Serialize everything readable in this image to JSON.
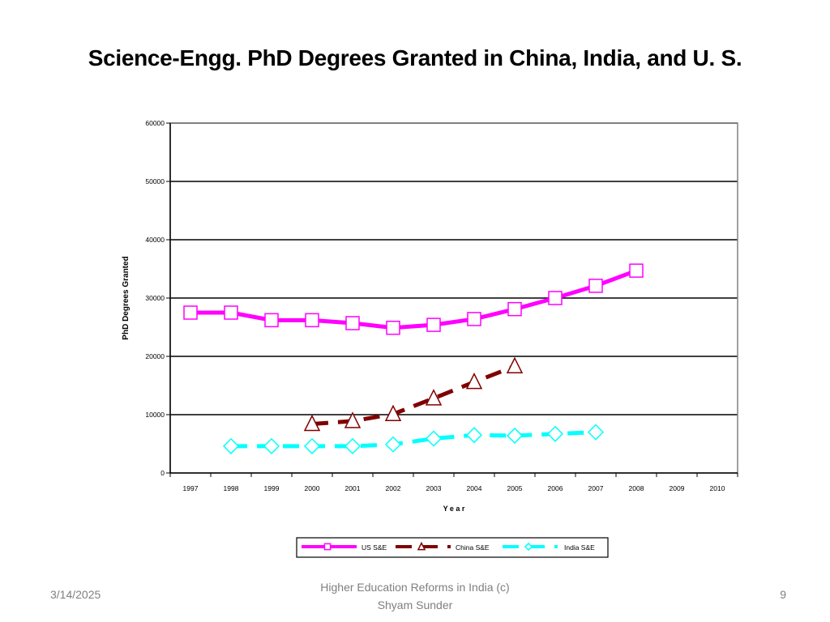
{
  "slide": {
    "title": "Science-Engg. PhD Degrees Granted in China, India, and U. S."
  },
  "footer": {
    "date": "3/14/2025",
    "center_line1": "Higher Education Reforms in India (c)",
    "center_line2": "Shyam Sunder",
    "page_number": "9"
  },
  "chart_data": {
    "type": "line",
    "title": "",
    "xlabel": "Y e a r",
    "ylabel": "PhD Degrees Granted",
    "categories": [
      "1997",
      "1998",
      "1999",
      "2000",
      "2001",
      "2002",
      "2003",
      "2004",
      "2005",
      "2006",
      "2007",
      "2008",
      "2009",
      "2010"
    ],
    "ylim": [
      0,
      60000
    ],
    "yticks": [
      0,
      10000,
      20000,
      30000,
      40000,
      50000,
      60000
    ],
    "grid": true,
    "legend_position": "bottom",
    "series": [
      {
        "name": "US S&E",
        "color": "#ff00ff",
        "marker": "square",
        "line_style": "solid",
        "values": [
          27500,
          27500,
          26200,
          26200,
          25700,
          24900,
          25400,
          26400,
          28100,
          30000,
          32100,
          34700,
          null,
          null
        ]
      },
      {
        "name": "China S&E",
        "color": "#800000",
        "marker": "triangle",
        "line_style": "dashed",
        "values": [
          null,
          null,
          null,
          8400,
          8900,
          10100,
          12800,
          15600,
          18300,
          null,
          null,
          null,
          null,
          null
        ]
      },
      {
        "name": "India S&E",
        "color": "#00ffff",
        "marker": "diamond",
        "line_style": "dashed",
        "values": [
          null,
          4600,
          4600,
          4600,
          4600,
          4900,
          5900,
          6500,
          6400,
          6700,
          7000,
          null,
          null,
          null
        ]
      }
    ]
  }
}
